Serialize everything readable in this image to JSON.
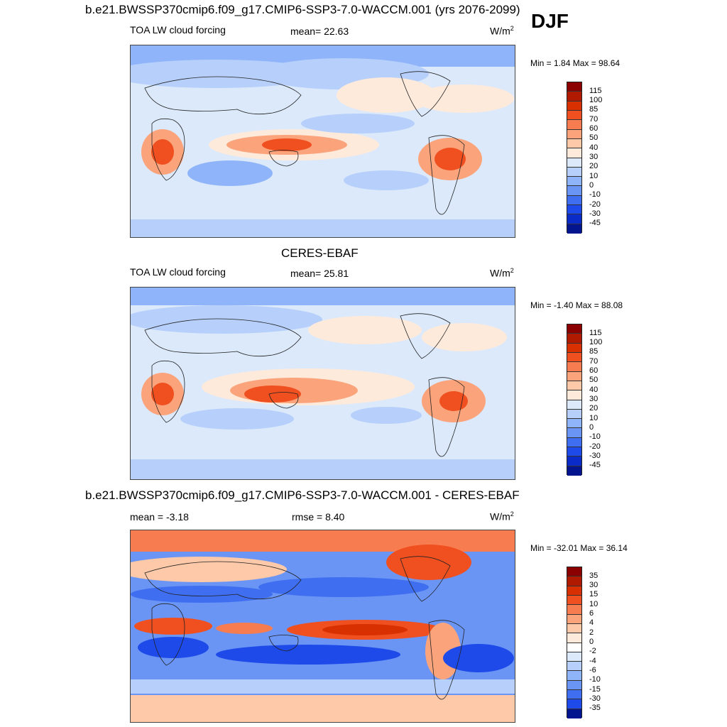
{
  "figure": {
    "title_top": "b.e21.BWSSP370cmip6.f09_g17.CMIP6-SSP3-7.0-WACCM.001 (yrs 2076-2099)",
    "season": "DJF"
  },
  "panel1": {
    "variable": "TOA LW cloud forcing",
    "mean_text": "mean=  22.63",
    "units": "W/m",
    "units_exp": "2",
    "minmax": "Min =   1.84 Max =  98.64"
  },
  "panel2": {
    "title": "CERES-EBAF",
    "variable": "TOA LW cloud forcing",
    "mean_text": "mean=  25.81",
    "units": "W/m",
    "units_exp": "2",
    "minmax": "Min =  -1.40 Max =  88.08"
  },
  "panel3": {
    "title": "b.e21.BWSSP370cmip6.f09_g17.CMIP6-SSP3-7.0-WACCM.001 - CERES-EBAF",
    "mean_text": "mean =  -3.18",
    "rmse_text": "rmse =   8.40",
    "units": "W/m",
    "units_exp": "2",
    "minmax": "Min = -32.01 Max =  36.14"
  },
  "colorbar_main": {
    "labels": [
      "115",
      "100",
      "85",
      "70",
      "60",
      "50",
      "40",
      "30",
      "20",
      "10",
      "0",
      "-10",
      "-20",
      "-30",
      "-45"
    ],
    "colors": [
      "#8b0000",
      "#b01a00",
      "#d83000",
      "#f05020",
      "#f77d50",
      "#fba47c",
      "#fdc9a8",
      "#feeadb",
      "#dbe9fb",
      "#b6d0fb",
      "#8fb4fa",
      "#6a95f5",
      "#3f6ff0",
      "#1d4ae8",
      "#0b2bc9",
      "#03148f"
    ]
  },
  "colorbar_diff": {
    "labels": [
      "35",
      "30",
      "15",
      "10",
      "6",
      "4",
      "2",
      "0",
      "-2",
      "-4",
      "-6",
      "-10",
      "-15",
      "-30",
      "-35"
    ],
    "colors": [
      "#8b0000",
      "#b01a00",
      "#d83000",
      "#f05020",
      "#f77d50",
      "#fba47c",
      "#fdc9a8",
      "#feeadb",
      "#ffffff",
      "#dbe9fb",
      "#b6d0fb",
      "#8fb4fa",
      "#6a95f5",
      "#3f6ff0",
      "#1d4ae8",
      "#03148f"
    ]
  }
}
